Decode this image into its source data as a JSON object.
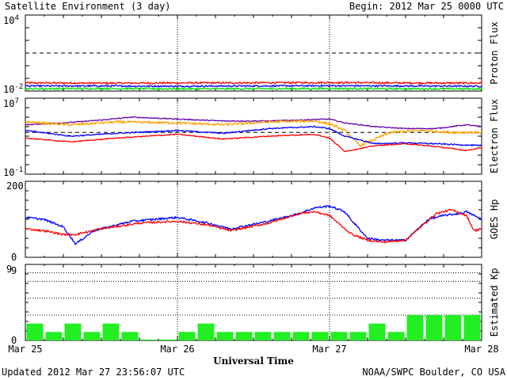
{
  "title": "Satellite Environment (3 day)",
  "begin_text": "Begin:  2012 Mar 25 0000 UTC",
  "updated_text": "Updated 2012 Mar 27 23:56:07 UTC",
  "source_text": "NOAA/SWPC Boulder, CO USA",
  "xlabel": "Universal Time",
  "x_ticks": [
    "Mar 25",
    "Mar 26",
    "Mar 27",
    "Mar 28"
  ],
  "chart_data": [
    {
      "type": "line",
      "ylabel": "Proton Flux",
      "yscale": "log",
      "y_tick_labels": [
        "10^4",
        "10^-2"
      ],
      "y_tick_base": [
        "10",
        "10"
      ],
      "y_tick_exp": [
        "4",
        "-2"
      ],
      "ylim_exp": [
        -2,
        4
      ],
      "threshold_exp": 1,
      "x_days": [
        0,
        3
      ],
      "series": [
        {
          "color": "#ff0000",
          "x": [
            0,
            0.5,
            1,
            1.5,
            2,
            2.5,
            3
          ],
          "y_exp": [
            -1.35,
            -1.38,
            -1.36,
            -1.35,
            -1.33,
            -1.36,
            -1.37
          ],
          "noise": 0.07
        },
        {
          "color": "#0000ff",
          "x": [
            0,
            0.5,
            1,
            1.5,
            2,
            2.5,
            3
          ],
          "y_exp": [
            -1.6,
            -1.6,
            -1.62,
            -1.6,
            -1.58,
            -1.6,
            -1.62
          ],
          "noise": 0.06
        },
        {
          "color": "#00e000",
          "x": [
            0,
            0.5,
            1,
            1.5,
            2,
            2.5,
            3
          ],
          "y_exp": [
            -1.82,
            -1.8,
            -1.83,
            -1.82,
            -1.8,
            -1.82,
            -1.83
          ],
          "noise": 0.07
        }
      ]
    },
    {
      "type": "line",
      "ylabel": "Electron Flux",
      "yscale": "log",
      "y_tick_labels": [
        "10^7",
        "10^-1"
      ],
      "y_tick_base": [
        "10",
        "10"
      ],
      "y_tick_exp": [
        "7",
        "-1"
      ],
      "ylim_exp": [
        -1,
        7
      ],
      "threshold_exp": 3.4,
      "x_days": [
        0,
        3
      ],
      "series": [
        {
          "color": "#6600aa",
          "x": [
            0,
            0.25,
            0.5,
            0.7,
            1.0,
            1.3,
            1.6,
            2.0,
            2.1,
            2.3,
            2.5,
            2.7,
            2.9,
            3.0
          ],
          "y_exp": [
            4.2,
            4.4,
            4.7,
            5.0,
            4.8,
            4.6,
            4.6,
            4.8,
            4.4,
            4.0,
            3.8,
            3.8,
            4.2,
            4.0
          ],
          "noise": 0.05
        },
        {
          "color": "#ffa000",
          "x": [
            0,
            0.3,
            0.6,
            1.0,
            1.3,
            1.6,
            1.9,
            2.0,
            2.1,
            2.2,
            2.4,
            2.6,
            2.8,
            3.0
          ],
          "y_exp": [
            4.5,
            4.2,
            4.5,
            4.4,
            4.2,
            4.5,
            4.6,
            4.3,
            3.6,
            2.0,
            3.4,
            3.6,
            3.4,
            3.4
          ],
          "noise": 0.12
        },
        {
          "color": "#0000ff",
          "x": [
            0,
            0.3,
            0.6,
            1.0,
            1.3,
            1.6,
            1.9,
            2.0,
            2.1,
            2.3,
            2.5,
            2.7,
            3.0
          ],
          "y_exp": [
            3.6,
            3.0,
            3.3,
            3.6,
            3.3,
            3.8,
            4.0,
            3.8,
            3.0,
            2.2,
            2.3,
            2.2,
            2.0
          ],
          "noise": 0.06
        },
        {
          "color": "#ff0000",
          "x": [
            0,
            0.3,
            0.6,
            1.0,
            1.3,
            1.6,
            1.9,
            2.0,
            2.1,
            2.3,
            2.5,
            2.7,
            2.9,
            3.0
          ],
          "y_exp": [
            2.8,
            2.4,
            2.8,
            3.2,
            2.7,
            3.0,
            3.2,
            2.8,
            1.4,
            2.0,
            2.2,
            1.9,
            1.5,
            1.8
          ],
          "noise": 0.05
        }
      ]
    },
    {
      "type": "line",
      "ylabel": "GOES Hp",
      "yscale": "linear",
      "y_tick_labels": [
        "200",
        "0"
      ],
      "ylim": [
        0,
        200
      ],
      "x_days": [
        0,
        3
      ],
      "series": [
        {
          "color": "#0000ff",
          "x": [
            0,
            0.12,
            0.25,
            0.33,
            0.45,
            0.7,
            1.0,
            1.2,
            1.35,
            1.6,
            1.8,
            1.9,
            2.0,
            2.1,
            2.15,
            2.25,
            2.35,
            2.5,
            2.65,
            2.75,
            2.85,
            2.9,
            3.0
          ],
          "y_exp": [
            105,
            100,
            80,
            35,
            70,
            95,
            105,
            90,
            75,
            95,
            115,
            130,
            135,
            120,
            95,
            50,
            45,
            45,
            100,
            110,
            115,
            120,
            100
          ],
          "noise": 2.5
        },
        {
          "color": "#ff0000",
          "x": [
            0,
            0.12,
            0.25,
            0.33,
            0.5,
            0.75,
            1.0,
            1.2,
            1.35,
            1.6,
            1.8,
            1.9,
            2.0,
            2.1,
            2.15,
            2.25,
            2.35,
            2.5,
            2.6,
            2.7,
            2.8,
            2.9,
            2.95,
            3.0
          ],
          "y_exp": [
            75,
            70,
            60,
            60,
            75,
            90,
            95,
            85,
            70,
            90,
            115,
            120,
            110,
            75,
            60,
            45,
            40,
            45,
            80,
            115,
            125,
            110,
            70,
            75
          ],
          "noise": 2.5
        }
      ]
    },
    {
      "type": "bar",
      "ylabel": "Estimated Kp",
      "y_tick_labels": [
        "9",
        "0"
      ],
      "ylim": [
        0,
        9
      ],
      "bar_color": "#22ee22",
      "values": [
        2,
        1,
        2,
        1,
        2,
        1,
        0.1,
        0.1,
        1,
        2,
        1,
        1,
        1,
        1,
        1,
        1,
        1,
        1,
        2,
        1,
        3,
        3,
        3,
        3
      ]
    }
  ]
}
